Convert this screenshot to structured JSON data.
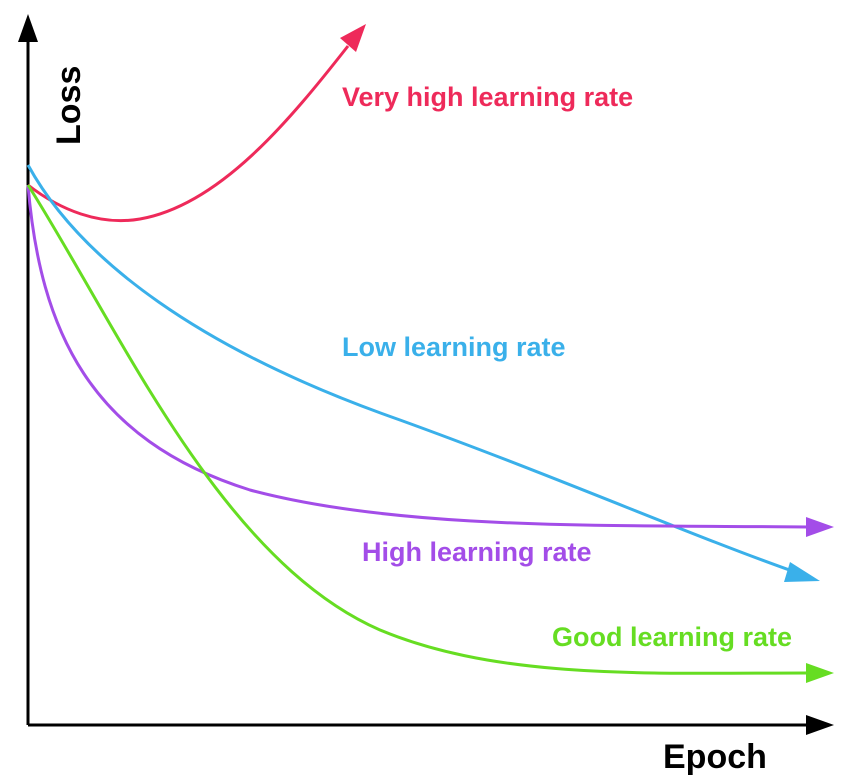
{
  "axes": {
    "y_label": "Loss",
    "x_label": "Epoch"
  },
  "curves": [
    {
      "label": "Very high learning rate"
    },
    {
      "label": "Low learning rate"
    },
    {
      "label": "High learning rate"
    },
    {
      "label": "Good learning rate"
    }
  ]
}
